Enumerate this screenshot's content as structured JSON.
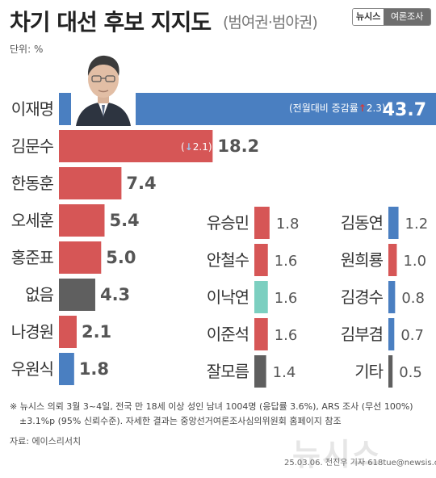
{
  "header": {
    "title": "차기 대선 후보 지지도",
    "subtitle": "(범여권·범야권)",
    "logo_left": "뉴시스",
    "logo_right": "여론조사",
    "unit": "단위: %"
  },
  "lead_note": {
    "label": "(전월대비 증감률",
    "arrow": "↑",
    "change": "2.3)"
  },
  "second_note": {
    "label": "(",
    "arrow": "↓",
    "change": "2.1)"
  },
  "colors": {
    "blue": "#4a7fc1",
    "red": "#d65656",
    "gray": "#5f5f5f",
    "teal": "#7ccfc0",
    "up_arrow": "#d43a3a"
  },
  "chart_data": [
    {
      "type": "bar",
      "orientation": "horizontal",
      "categories": [
        "이재명",
        "김문수",
        "한동훈",
        "오세훈",
        "홍준표",
        "없음",
        "나경원",
        "우원식"
      ],
      "values": [
        43.7,
        18.2,
        7.4,
        5.4,
        5.0,
        4.3,
        2.1,
        1.8
      ],
      "labels": [
        "43.7",
        "18.2",
        "7.4",
        "5.4",
        "5.0",
        "4.3",
        "2.1",
        "1.8"
      ],
      "colors": [
        "blue",
        "red",
        "red",
        "red",
        "red",
        "gray",
        "red",
        "blue"
      ]
    },
    {
      "type": "bar",
      "orientation": "horizontal",
      "categories": [
        "유승민",
        "안철수",
        "이낙연",
        "이준석",
        "잘모름"
      ],
      "values": [
        1.8,
        1.6,
        1.6,
        1.6,
        1.4
      ],
      "labels": [
        "1.8",
        "1.6",
        "1.6",
        "1.6",
        "1.4"
      ],
      "colors": [
        "red",
        "red",
        "teal",
        "red",
        "gray"
      ]
    },
    {
      "type": "bar",
      "orientation": "horizontal",
      "categories": [
        "김동연",
        "원희룡",
        "김경수",
        "김부겸",
        "기타"
      ],
      "values": [
        1.2,
        1.0,
        0.8,
        0.7,
        0.5
      ],
      "labels": [
        "1.2",
        "1.0",
        "0.8",
        "0.7",
        "0.5"
      ],
      "colors": [
        "blue",
        "red",
        "blue",
        "blue",
        "gray"
      ]
    }
  ],
  "footnote": {
    "line1": "※ 뉴시스 의뢰 3월 3~4일, 전국 만 18세 이상 성인 남녀 1004명 (응답률 3.6%), ARS 조사 (무선 100%)",
    "line2": "±3.1%p (95% 신뢰수준). 자세한 결과는 중앙선거여론조사심의위원회 홈페이지 참조"
  },
  "source": "자료: 에이스리서치",
  "watermark": "뉴시스",
  "credit": "25.03.06. 전진우 기자 618tue@newsis.com"
}
